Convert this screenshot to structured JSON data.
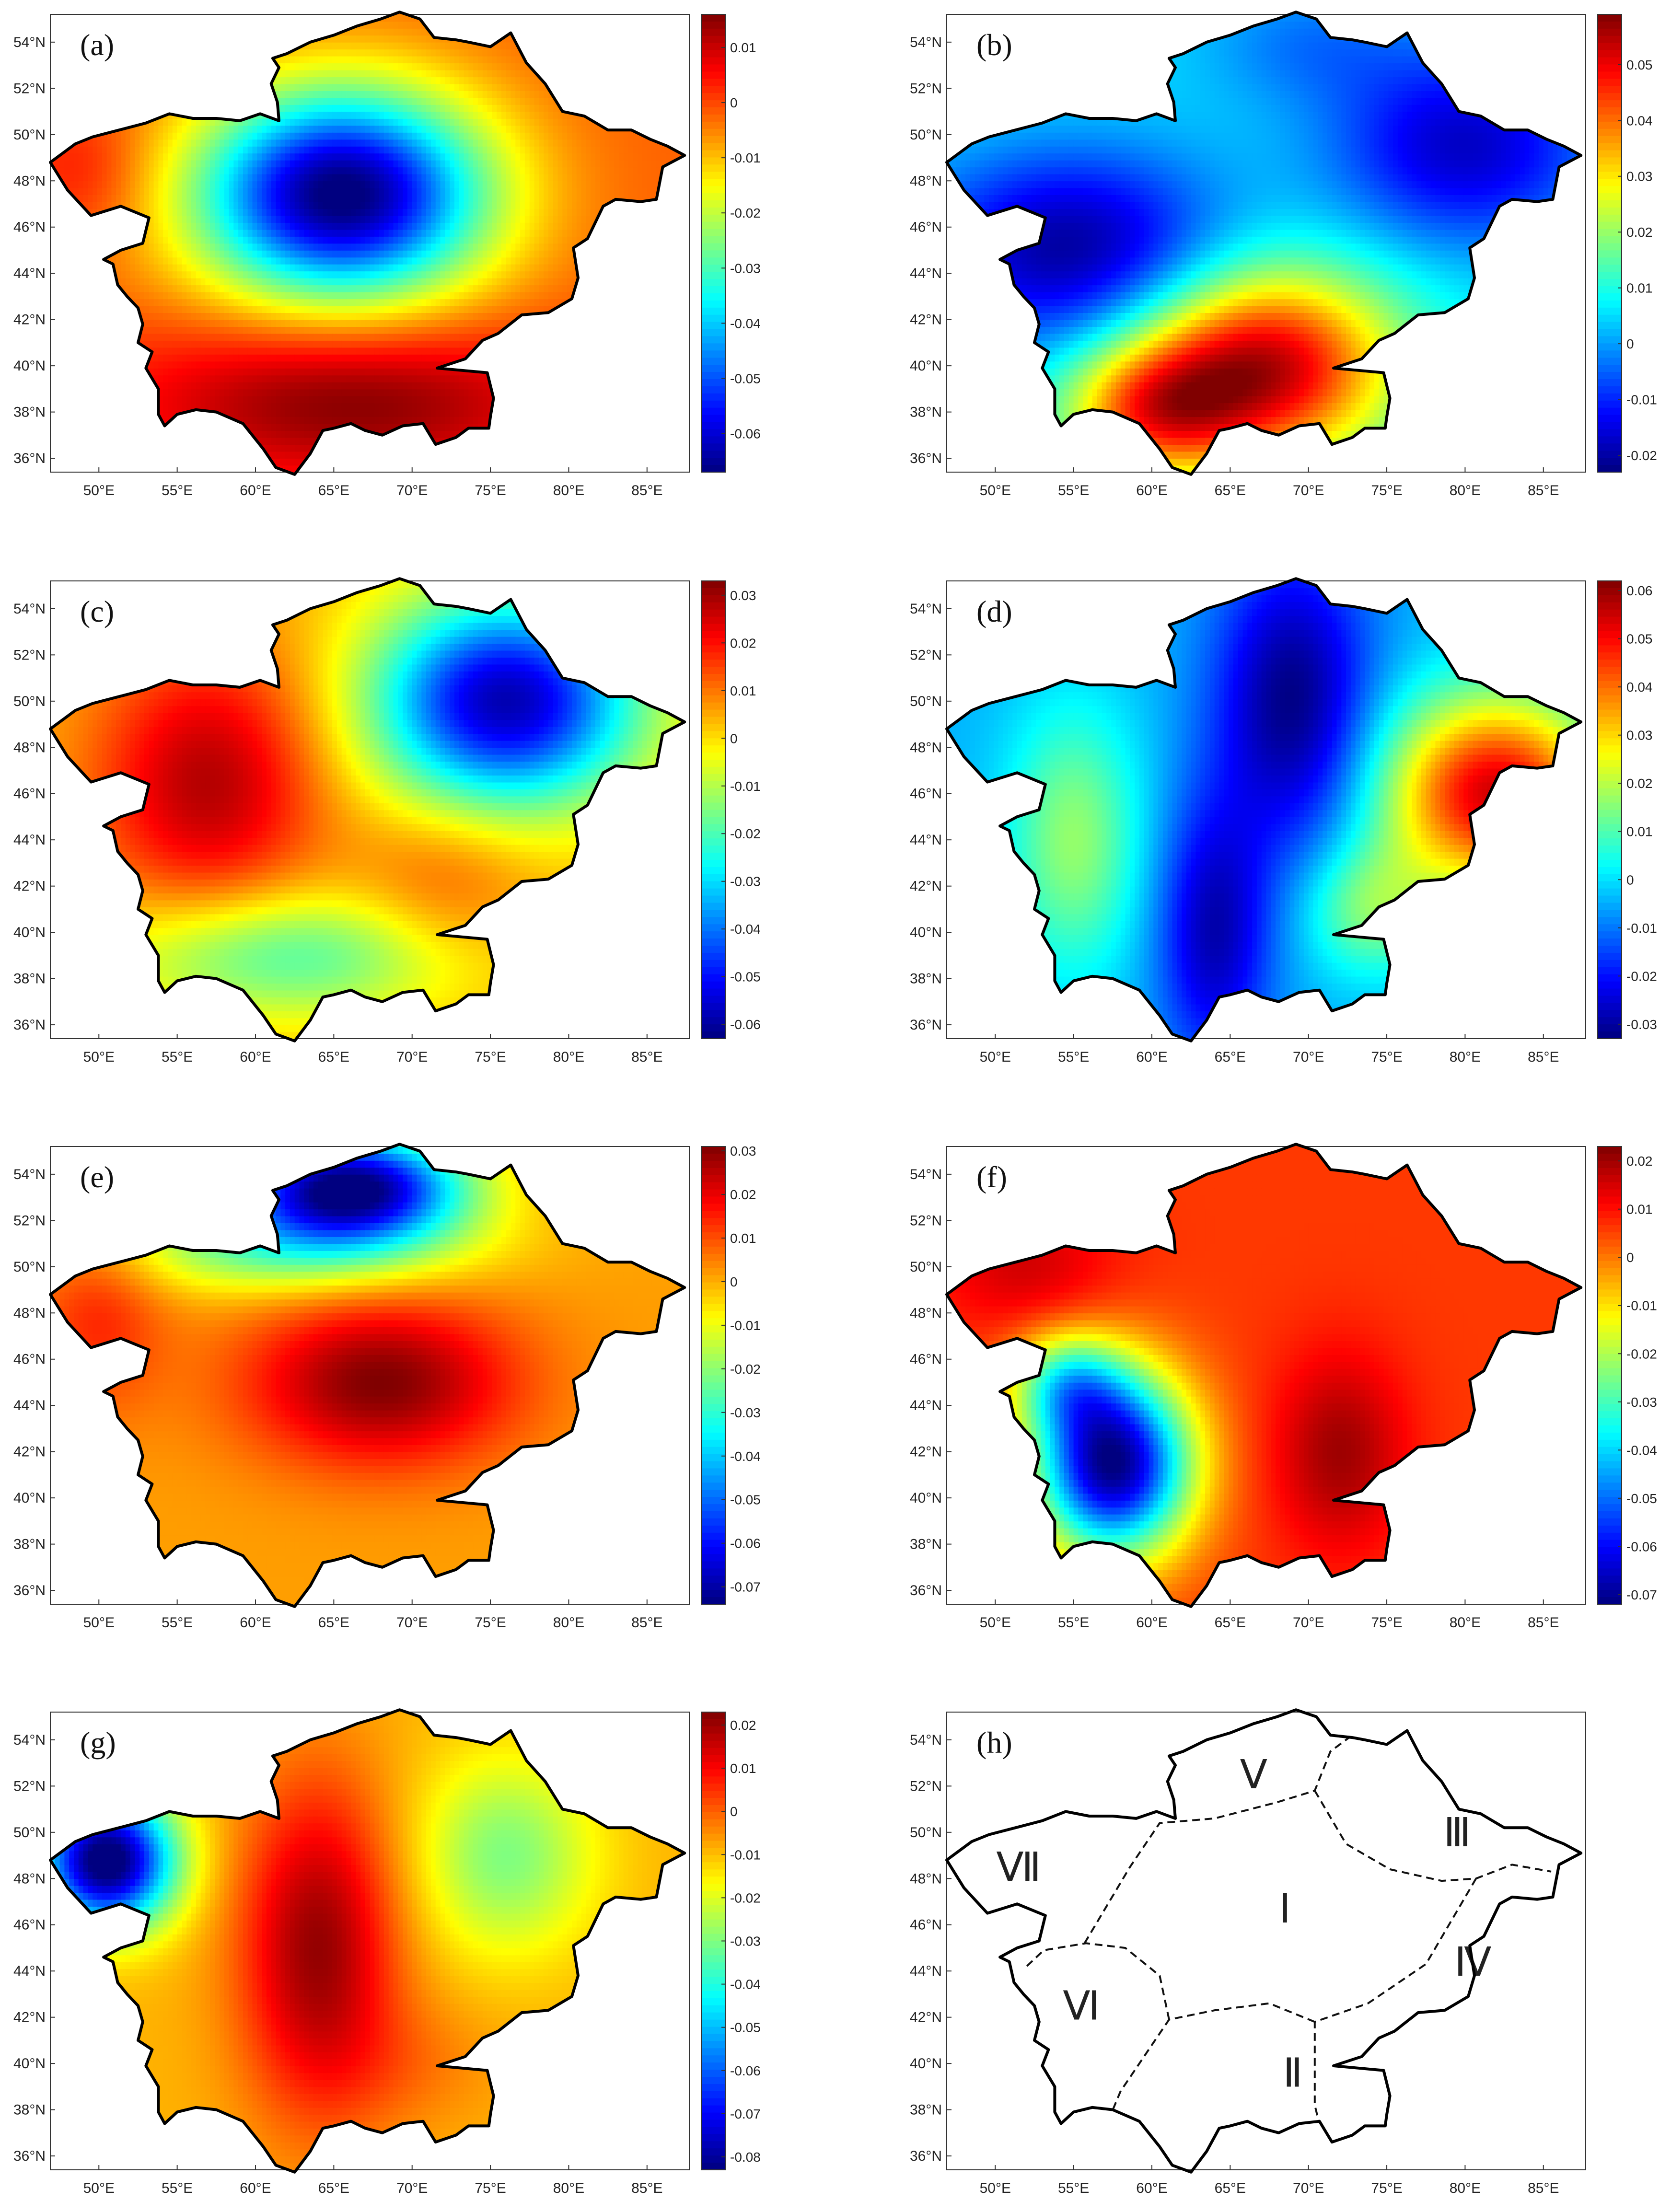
{
  "chart_data": [
    {
      "type": "heatmap",
      "panel_label": "(a)",
      "xticks": [
        "50°E",
        "55°E",
        "60°E",
        "65°E",
        "70°E",
        "75°E",
        "80°E",
        "85°E"
      ],
      "yticks": [
        "54°N",
        "52°N",
        "50°N",
        "48°N",
        "46°N",
        "44°N",
        "42°N",
        "40°N",
        "38°N",
        "36°N"
      ],
      "colorbar_ticks": [
        "0.01",
        "0",
        "-0.01",
        "-0.02",
        "-0.03",
        "-0.04",
        "-0.05",
        "-0.06"
      ],
      "colorbar_range": [
        -0.067,
        0.016
      ]
    },
    {
      "type": "heatmap",
      "panel_label": "(b)",
      "xticks": [
        "50°E",
        "55°E",
        "60°E",
        "65°E",
        "70°E",
        "75°E",
        "80°E",
        "85°E"
      ],
      "yticks": [
        "54°N",
        "52°N",
        "50°N",
        "48°N",
        "46°N",
        "44°N",
        "42°N",
        "40°N",
        "38°N",
        "36°N"
      ],
      "colorbar_ticks": [
        "0.05",
        "0.04",
        "0.03",
        "0.02",
        "0.01",
        "0",
        "-0.01",
        "-0.02"
      ],
      "colorbar_range": [
        -0.023,
        0.059
      ]
    },
    {
      "type": "heatmap",
      "panel_label": "(c)",
      "xticks": [
        "50°E",
        "55°E",
        "60°E",
        "65°E",
        "70°E",
        "75°E",
        "80°E",
        "85°E"
      ],
      "yticks": [
        "54°N",
        "52°N",
        "50°N",
        "48°N",
        "46°N",
        "44°N",
        "42°N",
        "40°N",
        "38°N",
        "36°N"
      ],
      "colorbar_ticks": [
        "0.03",
        "0.02",
        "0.01",
        "0",
        "-0.01",
        "-0.02",
        "-0.03",
        "-0.04",
        "-0.05",
        "-0.06"
      ],
      "colorbar_range": [
        -0.063,
        0.033
      ]
    },
    {
      "type": "heatmap",
      "panel_label": "(d)",
      "xticks": [
        "50°E",
        "55°E",
        "60°E",
        "65°E",
        "70°E",
        "75°E",
        "80°E",
        "85°E"
      ],
      "yticks": [
        "54°N",
        "52°N",
        "50°N",
        "48°N",
        "46°N",
        "44°N",
        "42°N",
        "40°N",
        "38°N",
        "36°N"
      ],
      "colorbar_ticks": [
        "0.06",
        "0.05",
        "0.04",
        "0.03",
        "0.02",
        "0.01",
        "0",
        "-0.01",
        "-0.02",
        "-0.03"
      ],
      "colorbar_range": [
        -0.033,
        0.062
      ]
    },
    {
      "type": "heatmap",
      "panel_label": "(e)",
      "xticks": [
        "50°E",
        "55°E",
        "60°E",
        "65°E",
        "70°E",
        "75°E",
        "80°E",
        "85°E"
      ],
      "yticks": [
        "54°N",
        "52°N",
        "50°N",
        "48°N",
        "46°N",
        "44°N",
        "42°N",
        "40°N",
        "38°N",
        "36°N"
      ],
      "colorbar_ticks": [
        "0.03",
        "0.02",
        "0.01",
        "0",
        "-0.01",
        "-0.02",
        "-0.03",
        "-0.04",
        "-0.05",
        "-0.06",
        "-0.07"
      ],
      "colorbar_range": [
        -0.074,
        0.031
      ]
    },
    {
      "type": "heatmap",
      "panel_label": "(f)",
      "xticks": [
        "50°E",
        "55°E",
        "60°E",
        "65°E",
        "70°E",
        "75°E",
        "80°E",
        "85°E"
      ],
      "yticks": [
        "54°N",
        "52°N",
        "50°N",
        "48°N",
        "46°N",
        "44°N",
        "42°N",
        "40°N",
        "38°N",
        "36°N"
      ],
      "colorbar_ticks": [
        "0.02",
        "0.01",
        "0",
        "-0.01",
        "-0.02",
        "-0.03",
        "-0.04",
        "-0.05",
        "-0.06",
        "-0.07"
      ],
      "colorbar_range": [
        -0.072,
        0.023
      ]
    },
    {
      "type": "heatmap",
      "panel_label": "(g)",
      "xticks": [
        "50°E",
        "55°E",
        "60°E",
        "65°E",
        "70°E",
        "75°E",
        "80°E",
        "85°E"
      ],
      "yticks": [
        "54°N",
        "52°N",
        "50°N",
        "48°N",
        "46°N",
        "44°N",
        "42°N",
        "40°N",
        "38°N",
        "36°N"
      ],
      "colorbar_ticks": [
        "0.02",
        "0.01",
        "0",
        "-0.01",
        "-0.02",
        "-0.03",
        "-0.04",
        "-0.05",
        "-0.06",
        "-0.07",
        "-0.08"
      ],
      "colorbar_range": [
        -0.083,
        0.023
      ]
    },
    {
      "type": "map",
      "panel_label": "(h)",
      "xticks": [
        "50°E",
        "55°E",
        "60°E",
        "65°E",
        "70°E",
        "75°E",
        "80°E",
        "85°E"
      ],
      "yticks": [
        "54°N",
        "52°N",
        "50°N",
        "48°N",
        "46°N",
        "44°N",
        "42°N",
        "40°N",
        "38°N",
        "36°N"
      ],
      "regions": [
        "Ⅰ",
        "Ⅱ",
        "Ⅲ",
        "Ⅳ",
        "Ⅴ",
        "Ⅵ",
        "Ⅶ"
      ]
    }
  ],
  "colors": {
    "deep_blue": "#00008f",
    "blue": "#0040ff",
    "cyan": "#00e0ff",
    "yellow": "#ffff00",
    "orange": "#ff8000",
    "red": "#e00000",
    "dark_red": "#800000",
    "outline": "#000000"
  }
}
